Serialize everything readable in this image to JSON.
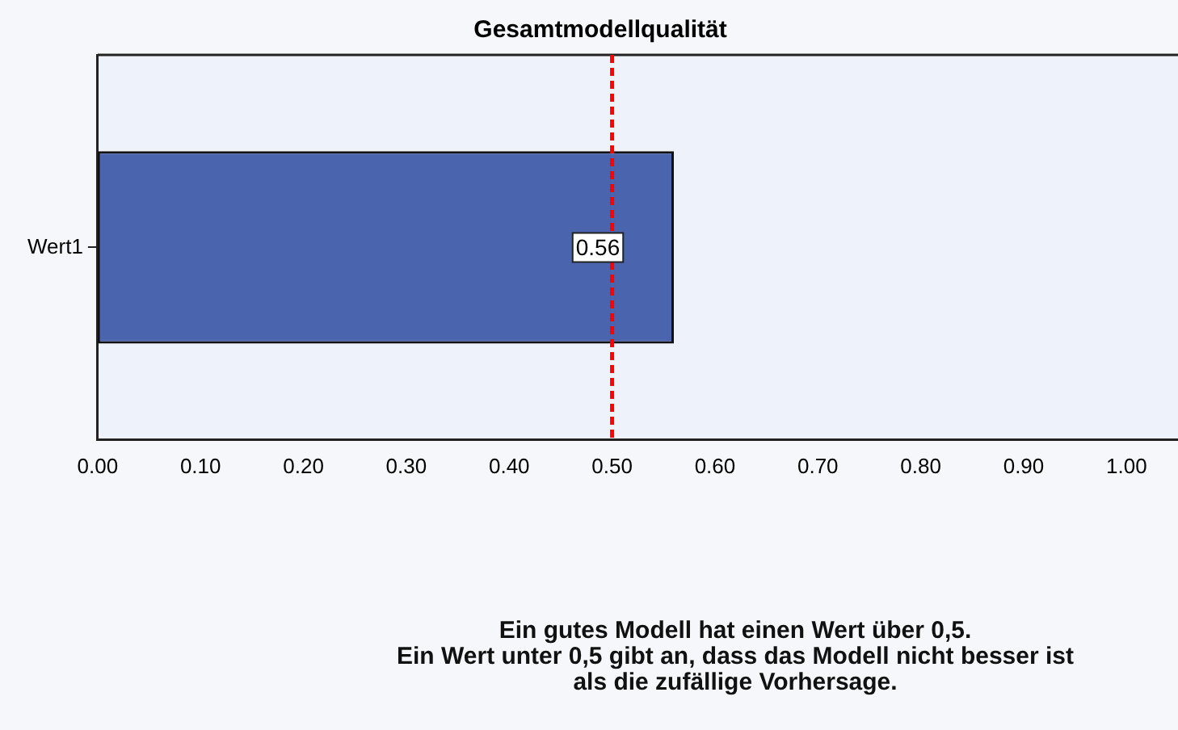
{
  "chart_data": {
    "type": "bar",
    "orientation": "horizontal",
    "title": "Gesamtmodellqualität",
    "categories": [
      "Wert1"
    ],
    "values": [
      0.56
    ],
    "color": "#4a65ad",
    "data_labels": true,
    "xlim": [
      0,
      1.05
    ],
    "xticks": [
      {
        "value": 0,
        "label": "0.00"
      },
      {
        "value": 0.1,
        "label": "0.10"
      },
      {
        "value": 0.2,
        "label": "0.20"
      },
      {
        "value": 0.3,
        "label": "0.30"
      },
      {
        "value": 0.4,
        "label": "0.40"
      },
      {
        "value": 0.5,
        "label": "0.50"
      },
      {
        "value": 0.6,
        "label": "0.60"
      },
      {
        "value": 0.7,
        "label": "0.70"
      },
      {
        "value": 0.8,
        "label": "0.80"
      },
      {
        "value": 0.9,
        "label": "0.90"
      },
      {
        "value": 1,
        "label": "1.00"
      }
    ],
    "ref_lines": [
      {
        "axis": "x",
        "value": 0.5,
        "color": "#ff0000",
        "line_style": "dashed"
      }
    ],
    "grid": false,
    "legend": false,
    "annotations": [
      "Ein gutes Modell hat einen Wert über 0,5.",
      "Ein Wert unter 0,5 gibt an, dass das Modell nicht besser ist als die zufällige Vorhersage."
    ]
  }
}
